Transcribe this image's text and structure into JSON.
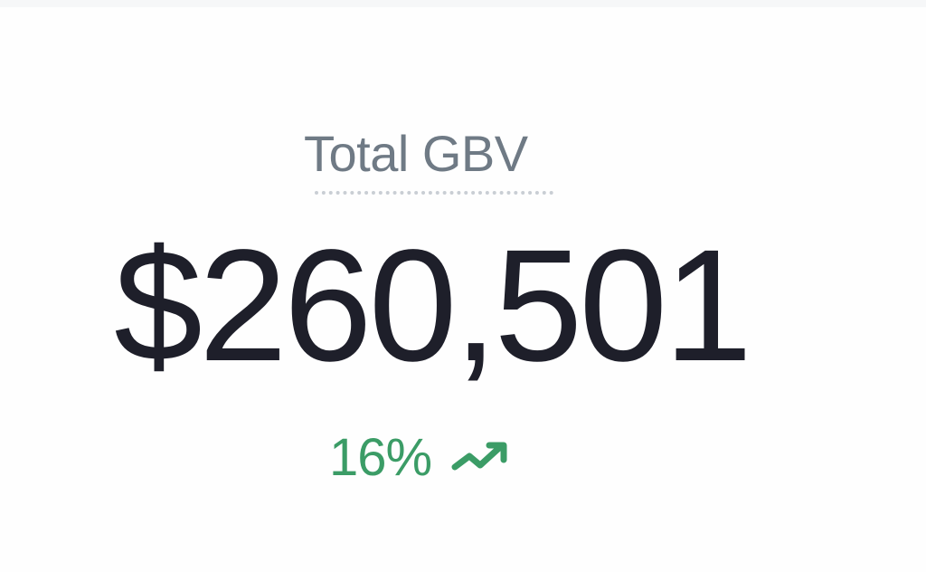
{
  "metric": {
    "label": "Total GBV",
    "value": "$260,501",
    "delta": "16%",
    "trend_icon": "trending-up-icon",
    "delta_color": "#3b9c66"
  }
}
